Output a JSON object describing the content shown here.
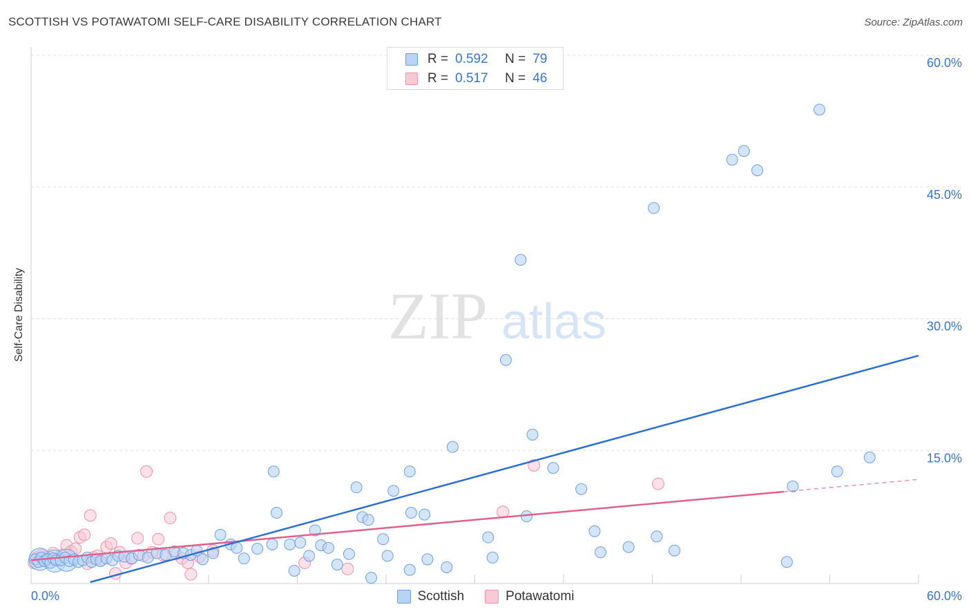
{
  "header": {
    "title": "SCOTTISH VS POTAWATOMI SELF-CARE DISABILITY CORRELATION CHART",
    "source": "Source: ZipAtlas.com"
  },
  "watermark": {
    "zip": "ZIP",
    "atlas": "atlas"
  },
  "legend_top": {
    "rows": [
      {
        "r_label": "R =",
        "r_value": "0.592",
        "n_label": "N =",
        "n_value": "79"
      },
      {
        "r_label": "R =",
        "r_value": "0.517",
        "n_label": "N =",
        "n_value": "46"
      }
    ]
  },
  "legend_bottom": {
    "items": [
      {
        "label": "Scottish"
      },
      {
        "label": "Potawatomi"
      }
    ]
  },
  "colors": {
    "scottish_fill": "#b9d3f5",
    "scottish_stroke": "#6c9fe0",
    "scottish_line": "#2a6fd1",
    "potawatomi_fill": "#f9c9d6",
    "potawatomi_stroke": "#ef8fab",
    "potawatomi_line": "#e0608c",
    "tick_text": "#3a74c9",
    "grid": "#dcdcdc"
  },
  "chart_data": {
    "type": "scatter",
    "title": "SCOTTISH VS POTAWATOMI SELF-CARE DISABILITY CORRELATION CHART",
    "xlabel": "",
    "ylabel": "Self-Care Disability",
    "xlim": [
      0,
      60
    ],
    "ylim": [
      0,
      60
    ],
    "x_tick_labels": [
      {
        "value": 0,
        "label": "0.0%"
      },
      {
        "value": 60,
        "label": "60.0%"
      }
    ],
    "y_tick_labels": [
      {
        "value": 15,
        "label": "15.0%"
      },
      {
        "value": 30,
        "label": "30.0%"
      },
      {
        "value": 45,
        "label": "45.0%"
      },
      {
        "value": 60,
        "label": "60.0%"
      }
    ],
    "grid": true,
    "legend_position": "top-center",
    "series": [
      {
        "name": "Scottish",
        "r": 0.592,
        "n": 79,
        "trend": {
          "x": [
            4.0,
            60.0
          ],
          "y": [
            0.0,
            25.8
          ]
        },
        "points": [
          [
            0.3,
            2.6
          ],
          [
            0.5,
            2.3
          ],
          [
            0.7,
            2.8
          ],
          [
            0.9,
            2.4
          ],
          [
            1.1,
            2.6
          ],
          [
            1.3,
            2.2
          ],
          [
            1.5,
            2.7
          ],
          [
            1.7,
            2.5
          ],
          [
            2.0,
            2.5
          ],
          [
            2.3,
            2.8
          ],
          [
            2.6,
            2.4
          ],
          [
            2.9,
            2.6
          ],
          [
            3.2,
            2.3
          ],
          [
            3.5,
            2.5
          ],
          [
            3.8,
            2.8
          ],
          [
            4.1,
            2.3
          ],
          [
            4.4,
            2.6
          ],
          [
            4.7,
            2.4
          ],
          [
            5.1,
            2.7
          ],
          [
            5.5,
            2.5
          ],
          [
            5.9,
            3.0
          ],
          [
            6.3,
            2.9
          ],
          [
            6.8,
            2.7
          ],
          [
            7.3,
            3.1
          ],
          [
            7.9,
            2.8
          ],
          [
            8.5,
            3.3
          ],
          [
            9.1,
            3.1
          ],
          [
            9.7,
            3.5
          ],
          [
            10.3,
            3.3
          ],
          [
            10.8,
            3.1
          ],
          [
            11.2,
            3.6
          ],
          [
            11.6,
            2.6
          ],
          [
            12.3,
            3.3
          ],
          [
            12.8,
            5.4
          ],
          [
            13.5,
            4.3
          ],
          [
            13.9,
            3.9
          ],
          [
            14.4,
            2.7
          ],
          [
            15.3,
            3.8
          ],
          [
            16.3,
            4.3
          ],
          [
            16.4,
            12.6
          ],
          [
            16.6,
            7.9
          ],
          [
            17.5,
            4.3
          ],
          [
            17.8,
            1.3
          ],
          [
            18.2,
            4.5
          ],
          [
            18.8,
            3.0
          ],
          [
            19.2,
            5.9
          ],
          [
            19.6,
            4.2
          ],
          [
            20.1,
            3.9
          ],
          [
            20.7,
            2.0
          ],
          [
            21.5,
            3.2
          ],
          [
            22.0,
            10.8
          ],
          [
            22.4,
            7.4
          ],
          [
            22.8,
            7.1
          ],
          [
            23.0,
            0.5
          ],
          [
            23.8,
            4.9
          ],
          [
            24.1,
            3.0
          ],
          [
            24.5,
            10.4
          ],
          [
            25.6,
            1.4
          ],
          [
            25.6,
            12.6
          ],
          [
            25.7,
            7.9
          ],
          [
            26.6,
            7.7
          ],
          [
            26.8,
            2.6
          ],
          [
            28.1,
            1.7
          ],
          [
            28.5,
            15.4
          ],
          [
            30.9,
            5.1
          ],
          [
            31.2,
            2.8
          ],
          [
            32.1,
            25.3
          ],
          [
            33.1,
            36.7
          ],
          [
            33.5,
            7.5
          ],
          [
            33.9,
            16.8
          ],
          [
            35.3,
            13.0
          ],
          [
            37.2,
            10.6
          ],
          [
            38.1,
            5.8
          ],
          [
            38.5,
            3.4
          ],
          [
            40.4,
            4.0
          ],
          [
            42.1,
            42.6
          ],
          [
            42.3,
            5.2
          ],
          [
            43.5,
            3.6
          ],
          [
            47.4,
            48.1
          ],
          [
            48.2,
            49.1
          ],
          [
            49.1,
            46.9
          ],
          [
            51.1,
            2.3
          ],
          [
            51.5,
            10.9
          ],
          [
            53.3,
            53.8
          ],
          [
            54.5,
            12.6
          ],
          [
            56.7,
            14.2
          ]
        ],
        "large_points": [
          [
            0.6,
            2.6
          ],
          [
            1.6,
            2.4
          ],
          [
            2.4,
            2.5
          ]
        ]
      },
      {
        "name": "Potawatomi",
        "r": 0.517,
        "n": 46,
        "trend": {
          "x": [
            0.0,
            50.9
          ],
          "y": [
            2.5,
            10.3
          ]
        },
        "trend_extension": {
          "x": [
            50.9,
            60.0
          ],
          "y": [
            10.3,
            11.7
          ]
        },
        "points": [
          [
            0.2,
            2.2
          ],
          [
            0.4,
            2.8
          ],
          [
            0.7,
            3.1
          ],
          [
            0.9,
            2.5
          ],
          [
            1.2,
            2.9
          ],
          [
            1.5,
            3.3
          ],
          [
            1.8,
            2.7
          ],
          [
            2.1,
            3.1
          ],
          [
            2.4,
            4.2
          ],
          [
            2.7,
            3.5
          ],
          [
            3.0,
            3.8
          ],
          [
            3.3,
            5.1
          ],
          [
            3.6,
            5.4
          ],
          [
            3.8,
            2.1
          ],
          [
            4.0,
            7.6
          ],
          [
            4.2,
            2.8
          ],
          [
            4.5,
            3.0
          ],
          [
            4.8,
            2.6
          ],
          [
            5.1,
            4.0
          ],
          [
            5.4,
            4.4
          ],
          [
            5.7,
            1.0
          ],
          [
            6.0,
            3.4
          ],
          [
            6.4,
            2.2
          ],
          [
            6.8,
            2.7
          ],
          [
            7.2,
            5.0
          ],
          [
            7.6,
            3.0
          ],
          [
            7.8,
            12.6
          ],
          [
            8.2,
            3.4
          ],
          [
            8.6,
            4.9
          ],
          [
            8.9,
            3.1
          ],
          [
            9.4,
            7.3
          ],
          [
            9.8,
            3.2
          ],
          [
            10.2,
            2.7
          ],
          [
            10.6,
            2.2
          ],
          [
            10.8,
            0.9
          ],
          [
            11.4,
            2.9
          ],
          [
            12.3,
            3.6
          ],
          [
            18.5,
            2.2
          ],
          [
            21.4,
            1.5
          ],
          [
            31.9,
            8.0
          ],
          [
            34.0,
            13.3
          ],
          [
            42.4,
            11.2
          ]
        ]
      }
    ]
  }
}
